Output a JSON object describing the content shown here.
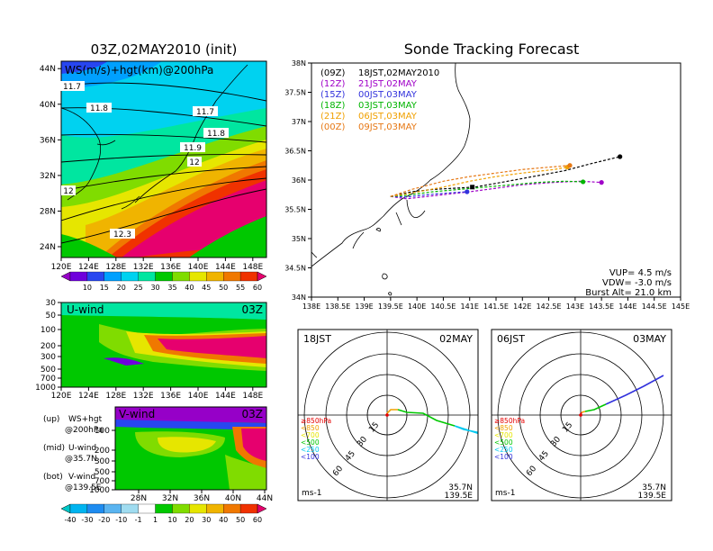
{
  "chart_data": [
    {
      "type": "heatmap",
      "title": "03Z,02MAY2010 (init)",
      "panel_label": "WS(m/s)+hgt(km)@200hPa",
      "x_ticks": [
        "120E",
        "124E",
        "128E",
        "132E",
        "136E",
        "140E",
        "144E",
        "148E"
      ],
      "y_ticks": [
        "24N",
        "28N",
        "32N",
        "36N",
        "40N",
        "44N"
      ],
      "contour_labels": [
        "11.7",
        "11.8",
        "11.7",
        "11.8",
        "11.9",
        "12",
        "12",
        "12.3"
      ],
      "colorbar_labels": [
        "10",
        "15",
        "20",
        "25",
        "30",
        "35",
        "40",
        "45",
        "50",
        "55",
        "60"
      ],
      "colorbar_colors": [
        "#9600c8",
        "#6e00dc",
        "#2846f0",
        "#00a0ff",
        "#00d2f0",
        "#00e6a0",
        "#00c800",
        "#80dc00",
        "#e6e600",
        "#f0b400",
        "#f07800",
        "#f03200",
        "#e6006e"
      ]
    },
    {
      "type": "heatmap",
      "panel_label": "U-wind",
      "time_label": "03Z",
      "y_ticks": [
        "30",
        "50",
        "100",
        "200",
        "300",
        "500",
        "700",
        "1000"
      ],
      "x_ticks": [
        "120E",
        "124E",
        "128E",
        "132E",
        "136E",
        "140E",
        "144E",
        "148E"
      ]
    },
    {
      "type": "heatmap",
      "panel_label": "V-wind",
      "time_label": "03Z",
      "y_ticks": [
        "100",
        "200",
        "300",
        "500",
        "700",
        "1000"
      ],
      "x_ticks": [
        "28N",
        "32N",
        "36N",
        "40N",
        "44N"
      ],
      "colorbar_labels": [
        "-40",
        "-30",
        "-20",
        "-10",
        "-1",
        "1",
        "10",
        "20",
        "30",
        "40",
        "50",
        "60"
      ],
      "colorbar_colors": [
        "#00c8c8",
        "#00b4f0",
        "#1e8cf0",
        "#5ab4f0",
        "#a0dcf0",
        "#ffffff",
        "#00c800",
        "#80dc00",
        "#e6e600",
        "#f0b400",
        "#f07800",
        "#f03200",
        "#e6006e"
      ]
    },
    {
      "type": "line",
      "title": "Sonde Tracking Forecast",
      "x_ticks": [
        "138E",
        "138.5E",
        "139E",
        "139.5E",
        "140E",
        "140.5E",
        "141E",
        "141.5E",
        "142E",
        "142.5E",
        "143E",
        "143.5E",
        "144E",
        "144.5E",
        "145E"
      ],
      "y_ticks": [
        "34N",
        "34.5N",
        "35N",
        "35.5N",
        "36N",
        "36.5N",
        "37N",
        "37.5N",
        "38N"
      ],
      "xlim": [
        138,
        145
      ],
      "ylim": [
        34,
        38
      ],
      "launch": {
        "x": 139.5,
        "y": 35.72
      },
      "legend": [
        {
          "code": "(09Z)",
          "time": "18JST,02MAY2010",
          "color": "#000000"
        },
        {
          "code": "(12Z)",
          "time": "21JST,02MAY",
          "color": "#a000c8"
        },
        {
          "code": "(15Z)",
          "time": "00JST,03MAY",
          "color": "#3232dc"
        },
        {
          "code": "(18Z)",
          "time": "03JST,03MAY",
          "color": "#00b400"
        },
        {
          "code": "(21Z)",
          "time": "06JST,03MAY",
          "color": "#f0a000"
        },
        {
          "code": "(00Z)",
          "time": "09JST,03MAY",
          "color": "#e67814"
        }
      ],
      "series": [
        {
          "color": "#000000",
          "x": [
            139.5,
            139.9,
            140.3,
            140.7,
            141.1,
            141.6,
            142.2,
            142.8,
            143.3,
            143.85
          ],
          "y": [
            35.72,
            35.8,
            35.84,
            35.86,
            35.88,
            35.96,
            36.06,
            36.16,
            36.28,
            36.4
          ]
        },
        {
          "color": "#a000c8",
          "x": [
            139.5,
            139.8,
            140.2,
            140.6,
            141.0,
            141.5,
            142.0,
            142.6,
            143.1,
            143.5
          ],
          "y": [
            35.72,
            35.68,
            35.72,
            35.76,
            35.8,
            35.86,
            35.92,
            35.96,
            35.98,
            35.96
          ]
        },
        {
          "color": "#3232dc",
          "x": [
            139.5,
            139.8,
            140.2,
            140.6,
            140.95
          ],
          "y": [
            35.72,
            35.71,
            35.75,
            35.78,
            35.8
          ]
        },
        {
          "color": "#00b400",
          "x": [
            139.5,
            139.8,
            140.3,
            140.8,
            141.3,
            141.8,
            142.3,
            142.8,
            143.15
          ],
          "y": [
            35.72,
            35.74,
            35.8,
            35.84,
            35.88,
            35.92,
            35.96,
            35.98,
            35.97
          ]
        },
        {
          "color": "#f0a000",
          "x": [
            139.5,
            139.9,
            140.5,
            141.0,
            141.5,
            142.0,
            142.6,
            142.85
          ],
          "y": [
            35.72,
            35.78,
            35.88,
            35.98,
            36.06,
            36.12,
            36.18,
            36.22
          ]
        },
        {
          "color": "#e67814",
          "x": [
            139.5,
            139.9,
            140.5,
            141.0,
            141.5,
            142.0,
            142.5,
            142.9
          ],
          "y": [
            35.72,
            35.84,
            35.98,
            36.06,
            36.12,
            36.18,
            36.22,
            36.25
          ]
        }
      ],
      "marker": {
        "x": 141.05,
        "y": 35.88
      },
      "params": [
        "VUP= 4.5 m/s",
        "VDW= -3.0 m/s",
        "Burst Alt= 21.0 km"
      ]
    },
    {
      "type": "line",
      "panel": "hodograph",
      "time_left": "18JST",
      "date_right": "02MAY",
      "ring_labels": [
        "15",
        "30",
        "45",
        "60"
      ],
      "levels": [
        {
          "label": "≥850hPa",
          "color": "#e60000"
        },
        {
          "label": "<850",
          "color": "#f0a000"
        },
        {
          "label": "<700",
          "color": "#e6e600"
        },
        {
          "label": "<500",
          "color": "#00c800"
        },
        {
          "label": "<250",
          "color": "#00c8f0"
        },
        {
          "label": "<100",
          "color": "#3232dc"
        }
      ],
      "location": [
        "35.7N",
        "139.5E"
      ],
      "unit": "ms-1"
    },
    {
      "type": "line",
      "panel": "hodograph",
      "time_left": "06JST",
      "date_right": "03MAY",
      "ring_labels": [
        "15",
        "30",
        "45",
        "60"
      ],
      "levels": [
        {
          "label": "≥850hPa",
          "color": "#e60000"
        },
        {
          "label": "<850",
          "color": "#f0a000"
        },
        {
          "label": "<700",
          "color": "#e6e600"
        },
        {
          "label": "<500",
          "color": "#00c800"
        },
        {
          "label": "<250",
          "color": "#00c8f0"
        },
        {
          "label": "<100",
          "color": "#3232dc"
        }
      ],
      "location": [
        "35.7N",
        "139.5E"
      ],
      "unit": "ms-1"
    }
  ],
  "legend_notes": [
    {
      "tag": "(up)",
      "line1": "WS+hgt",
      "line2": "@200hPa"
    },
    {
      "tag": "(mid)",
      "line1": "U-wind",
      "line2": "@35.7N"
    },
    {
      "tag": "(bot)",
      "line1": "V-wind",
      "line2": "@139.5E"
    }
  ]
}
